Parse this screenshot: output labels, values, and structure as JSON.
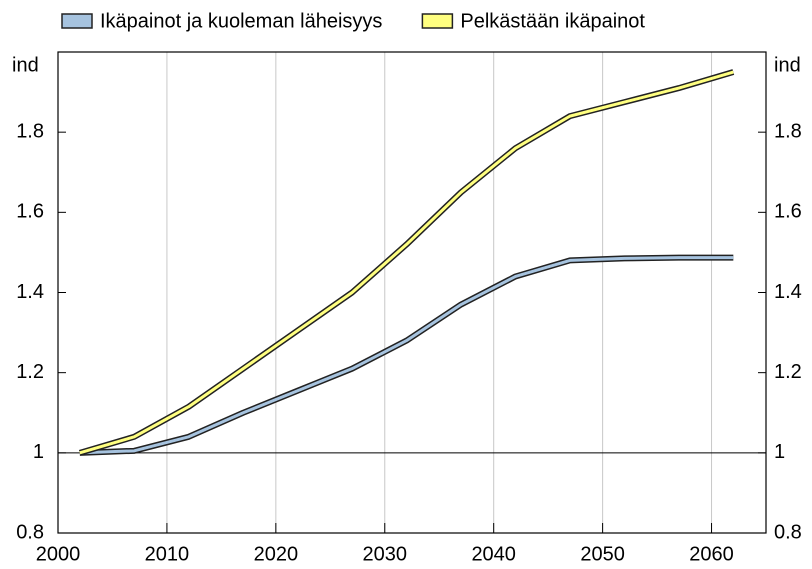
{
  "chart_data": {
    "type": "line",
    "y_unit_label": "ind",
    "x": [
      2002,
      2007,
      2012,
      2017,
      2022,
      2027,
      2032,
      2037,
      2042,
      2047,
      2052,
      2057,
      2062
    ],
    "series": [
      {
        "name": "Ikäpainot ja kuoleman läheisyys",
        "color": "#a6c3df",
        "values": [
          1.0,
          1.005,
          1.04,
          1.1,
          1.155,
          1.21,
          1.28,
          1.37,
          1.44,
          1.48,
          1.485,
          1.487,
          1.487
        ]
      },
      {
        "name": "Pelkästään ikäpainot",
        "color": "#ffff80",
        "values": [
          1.0,
          1.04,
          1.115,
          1.21,
          1.305,
          1.4,
          1.52,
          1.65,
          1.76,
          1.84,
          1.875,
          1.91,
          1.95
        ]
      }
    ],
    "xlim": [
      2000,
      2065
    ],
    "xticks": [
      2000,
      2010,
      2020,
      2030,
      2040,
      2050,
      2060
    ],
    "ylim": [
      0.8,
      2.0
    ],
    "yticks": [
      0.8,
      1,
      1.2,
      1.4,
      1.6,
      1.8
    ],
    "reference_line": 1,
    "grid": "x",
    "legend": "top"
  }
}
